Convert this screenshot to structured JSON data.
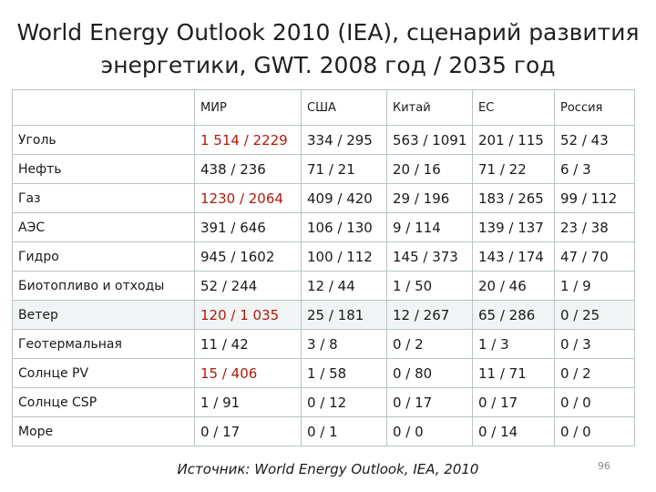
{
  "title": {
    "line1": "World Energy Outlook 2010 (IEA), сценарий развития",
    "line2": "энергетики, GWT. 2008 год / 2035 год"
  },
  "table": {
    "columns": [
      "",
      "МИР",
      "США",
      "Китай",
      "ЕС",
      "Россия"
    ],
    "rows": [
      {
        "label": "Уголь",
        "values": [
          "1 514 / 2229",
          "334 / 295",
          "563 / 1091",
          "201 / 115",
          "52 / 43"
        ],
        "highlight": [
          true,
          false,
          false,
          false,
          false
        ]
      },
      {
        "label": "Нефть",
        "values": [
          "438 / 236",
          "71 / 21",
          "20 / 16",
          "71 / 22",
          "6 / 3"
        ],
        "highlight": [
          false,
          false,
          false,
          false,
          false
        ]
      },
      {
        "label": "Газ",
        "values": [
          "1230 / 2064",
          "409 / 420",
          "29 / 196",
          "183 / 265",
          "99 / 112"
        ],
        "highlight": [
          true,
          false,
          false,
          false,
          false
        ]
      },
      {
        "label": "АЭС",
        "values": [
          "391 / 646",
          "106 / 130",
          "9 / 114",
          "139 / 137",
          "23 / 38"
        ],
        "highlight": [
          false,
          false,
          false,
          false,
          false
        ]
      },
      {
        "label": "Гидро",
        "values": [
          "945 / 1602",
          "100 / 112",
          "145 / 373",
          "143 / 174",
          "47 / 70"
        ],
        "highlight": [
          false,
          false,
          false,
          false,
          false
        ]
      },
      {
        "label": "Биотопливо и отходы",
        "values": [
          "52 / 244",
          "12 / 44",
          "1 / 50",
          "20 / 46",
          "1 / 9"
        ],
        "highlight": [
          false,
          false,
          false,
          false,
          false
        ]
      },
      {
        "label": "Ветер",
        "values": [
          "120 / 1 035",
          "25 / 181",
          "12 / 267",
          "65 / 286",
          "0 / 25"
        ],
        "highlight": [
          true,
          false,
          false,
          false,
          false
        ]
      },
      {
        "label": "Геотермальная",
        "values": [
          "11 / 42",
          "3 / 8",
          "0 / 2",
          "1 / 3",
          "0 / 3"
        ],
        "highlight": [
          false,
          false,
          false,
          false,
          false
        ]
      },
      {
        "label": "Солнце PV",
        "values": [
          "15 / 406",
          "1 / 58",
          "0 / 80",
          "11 / 71",
          "0 / 2"
        ],
        "highlight": [
          true,
          false,
          false,
          false,
          false
        ]
      },
      {
        "label": "Солнце CSP",
        "values": [
          "1 / 91",
          "0 / 12",
          "0 / 17",
          "0 / 17",
          "0 / 0"
        ],
        "highlight": [
          false,
          false,
          false,
          false,
          false
        ]
      },
      {
        "label": "Море",
        "values": [
          "0 / 17",
          "0 / 1",
          "0 / 0",
          "0 / 14",
          "0 / 0"
        ],
        "highlight": [
          false,
          false,
          false,
          false,
          false
        ]
      }
    ]
  },
  "source": "Источник: World Energy Outlook, IEA, 2010",
  "page_number": "96",
  "colors": {
    "highlight": "#b11a08",
    "border": "#b9c4c4"
  }
}
